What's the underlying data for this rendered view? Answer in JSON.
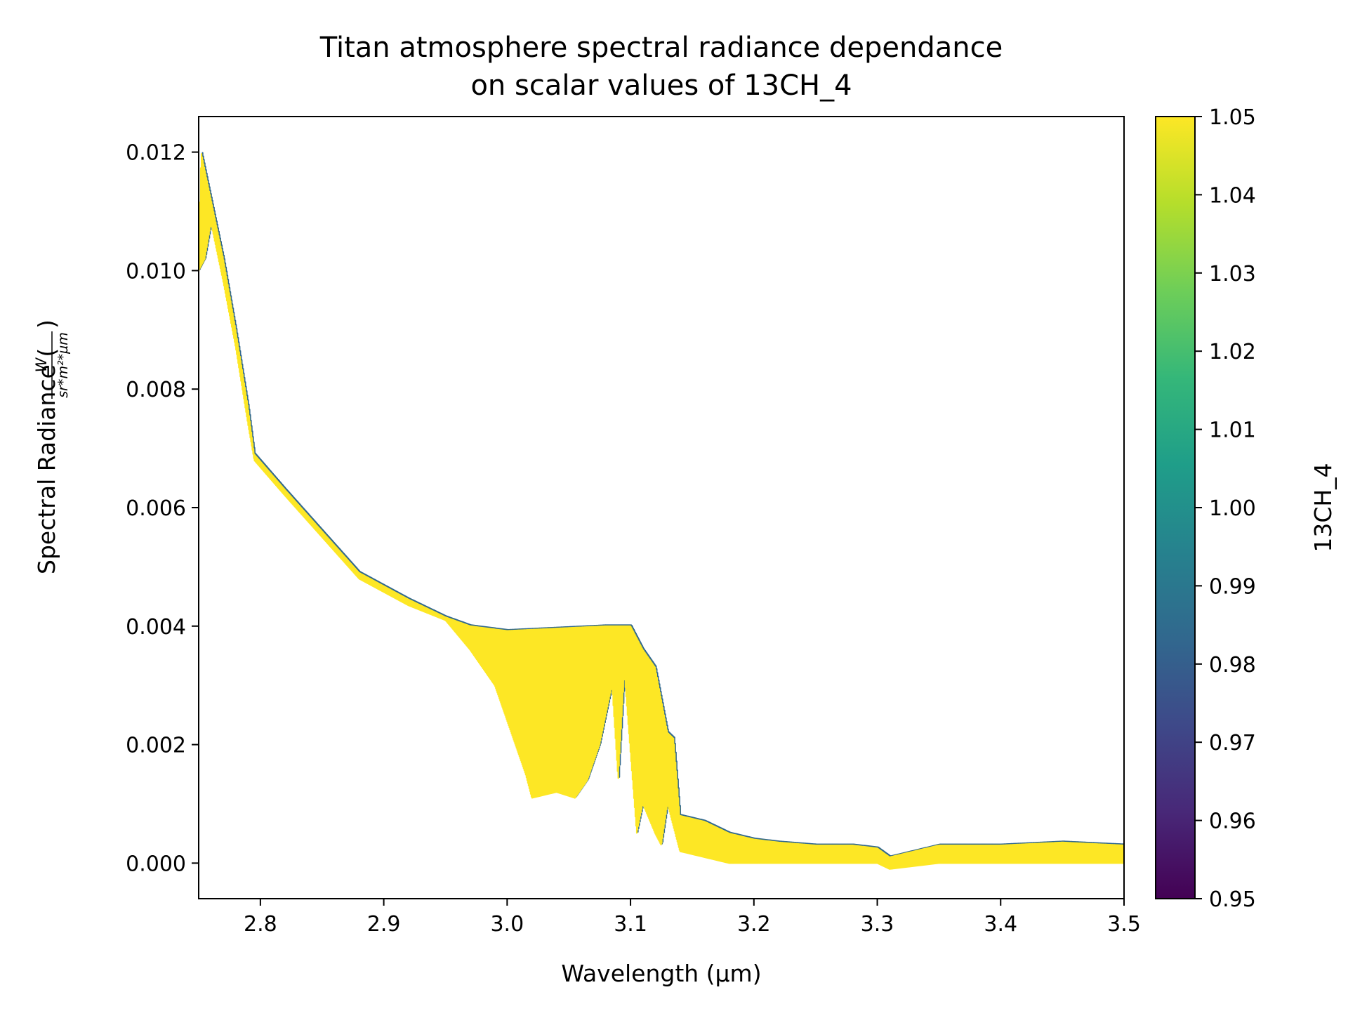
{
  "chart_data": {
    "type": "line",
    "title": "Titan atmosphere spectral radiance dependance\non scalar values of 13CH_4",
    "xlabel": "Wavelength (µm)",
    "ylabel": "Spectral Radiance (",
    "ylabel_unit_numerator": "W",
    "ylabel_unit_denominator": "sr*m²*µm",
    "ylabel_close": ")",
    "xlim": [
      2.75,
      3.5
    ],
    "ylim": [
      -0.0006,
      0.0126
    ],
    "xticks": [
      "2.8",
      "2.9",
      "3.0",
      "3.1",
      "3.2",
      "3.3",
      "3.4",
      "3.5"
    ],
    "yticks": [
      "0.000",
      "0.002",
      "0.004",
      "0.006",
      "0.008",
      "0.010",
      "0.012"
    ],
    "grid": false,
    "colorbar": {
      "label": "13CH_4",
      "range": [
        0.95,
        1.05
      ],
      "colormap": "viridis",
      "ticks": [
        "0.95",
        "0.96",
        "0.97",
        "0.98",
        "0.99",
        "1.00",
        "1.01",
        "1.02",
        "1.03",
        "1.04",
        "1.05"
      ],
      "stops": [
        "#440154",
        "#482878",
        "#3e4989",
        "#31688e",
        "#26828e",
        "#1f9e89",
        "#35b779",
        "#6ece58",
        "#b5de2b",
        "#fde725"
      ]
    },
    "series_colors": [
      "#31688e",
      "#fde725"
    ],
    "upper_envelope": [
      [
        2.75,
        0.01
      ],
      [
        2.752,
        0.012
      ],
      [
        2.755,
        0.0117
      ],
      [
        2.76,
        0.0112
      ],
      [
        2.77,
        0.0102
      ],
      [
        2.78,
        0.009
      ],
      [
        2.79,
        0.0077
      ],
      [
        2.795,
        0.0069
      ],
      [
        2.82,
        0.0063
      ],
      [
        2.85,
        0.0056
      ],
      [
        2.88,
        0.0049
      ],
      [
        2.92,
        0.00445
      ],
      [
        2.95,
        0.00415
      ],
      [
        2.97,
        0.004
      ],
      [
        3.0,
        0.00392
      ],
      [
        3.03,
        0.00395
      ],
      [
        3.06,
        0.00398
      ],
      [
        3.08,
        0.004
      ],
      [
        3.09,
        0.004
      ],
      [
        3.1,
        0.004
      ],
      [
        3.11,
        0.0036
      ],
      [
        3.12,
        0.0033
      ],
      [
        3.13,
        0.0022
      ],
      [
        3.135,
        0.0021
      ],
      [
        3.14,
        0.0008
      ],
      [
        3.16,
        0.0007
      ],
      [
        3.18,
        0.0005
      ],
      [
        3.2,
        0.0004
      ],
      [
        3.22,
        0.00035
      ],
      [
        3.25,
        0.0003
      ],
      [
        3.28,
        0.0003
      ],
      [
        3.3,
        0.00025
      ],
      [
        3.31,
        0.0001
      ],
      [
        3.33,
        0.0002
      ],
      [
        3.35,
        0.0003
      ],
      [
        3.4,
        0.0003
      ],
      [
        3.45,
        0.00035
      ],
      [
        3.5,
        0.0003
      ]
    ],
    "lower_envelope": [
      [
        2.75,
        0.01
      ],
      [
        2.755,
        0.0102
      ],
      [
        2.76,
        0.0108
      ],
      [
        2.77,
        0.0098
      ],
      [
        2.78,
        0.0087
      ],
      [
        2.79,
        0.0074
      ],
      [
        2.795,
        0.0068
      ],
      [
        2.82,
        0.0062
      ],
      [
        2.85,
        0.0055
      ],
      [
        2.88,
        0.0048
      ],
      [
        2.92,
        0.00435
      ],
      [
        2.95,
        0.0041
      ],
      [
        2.97,
        0.0036
      ],
      [
        2.99,
        0.003
      ],
      [
        3.0,
        0.0024
      ],
      [
        3.015,
        0.0015
      ],
      [
        3.02,
        0.0011
      ],
      [
        3.04,
        0.0012
      ],
      [
        3.055,
        0.0011
      ],
      [
        3.065,
        0.0014
      ],
      [
        3.075,
        0.002
      ],
      [
        3.085,
        0.003
      ],
      [
        3.09,
        0.0014
      ],
      [
        3.095,
        0.0032
      ],
      [
        3.105,
        0.0005
      ],
      [
        3.11,
        0.001
      ],
      [
        3.12,
        0.0005
      ],
      [
        3.125,
        0.0003
      ],
      [
        3.13,
        0.001
      ],
      [
        3.14,
        0.0002
      ],
      [
        3.16,
        0.0001
      ],
      [
        3.18,
        0.0
      ],
      [
        3.2,
        0.0
      ],
      [
        3.25,
        0.0
      ],
      [
        3.3,
        0.0
      ],
      [
        3.31,
        -0.0001
      ],
      [
        3.35,
        0.0
      ],
      [
        3.4,
        0.0
      ],
      [
        3.45,
        0.0
      ],
      [
        3.5,
        0.0
      ]
    ]
  }
}
